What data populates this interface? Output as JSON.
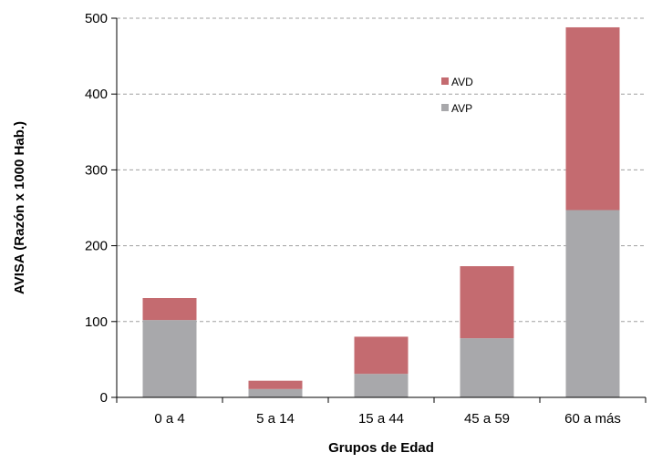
{
  "chart_data": {
    "type": "bar",
    "stacked": true,
    "title": "",
    "xlabel": "Grupos de Edad",
    "ylabel": "AVISA (Razón x 1000 Hab.)",
    "categories": [
      "0 a 4",
      "5 a 14",
      "15 a 44",
      "45 a 59",
      "60 a más"
    ],
    "series": [
      {
        "name": "AVP",
        "color": "#a8a8ab",
        "values": [
          102,
          11,
          31,
          78,
          247
        ]
      },
      {
        "name": "AVD",
        "color": "#c46b70",
        "values": [
          29,
          11,
          49,
          95,
          241
        ]
      }
    ],
    "ylim": [
      0,
      500
    ],
    "yticks": [
      0,
      100,
      200,
      300,
      400,
      500
    ],
    "grid": true,
    "legend_position": "top-right",
    "legend_order": [
      "AVD",
      "AVP"
    ]
  }
}
